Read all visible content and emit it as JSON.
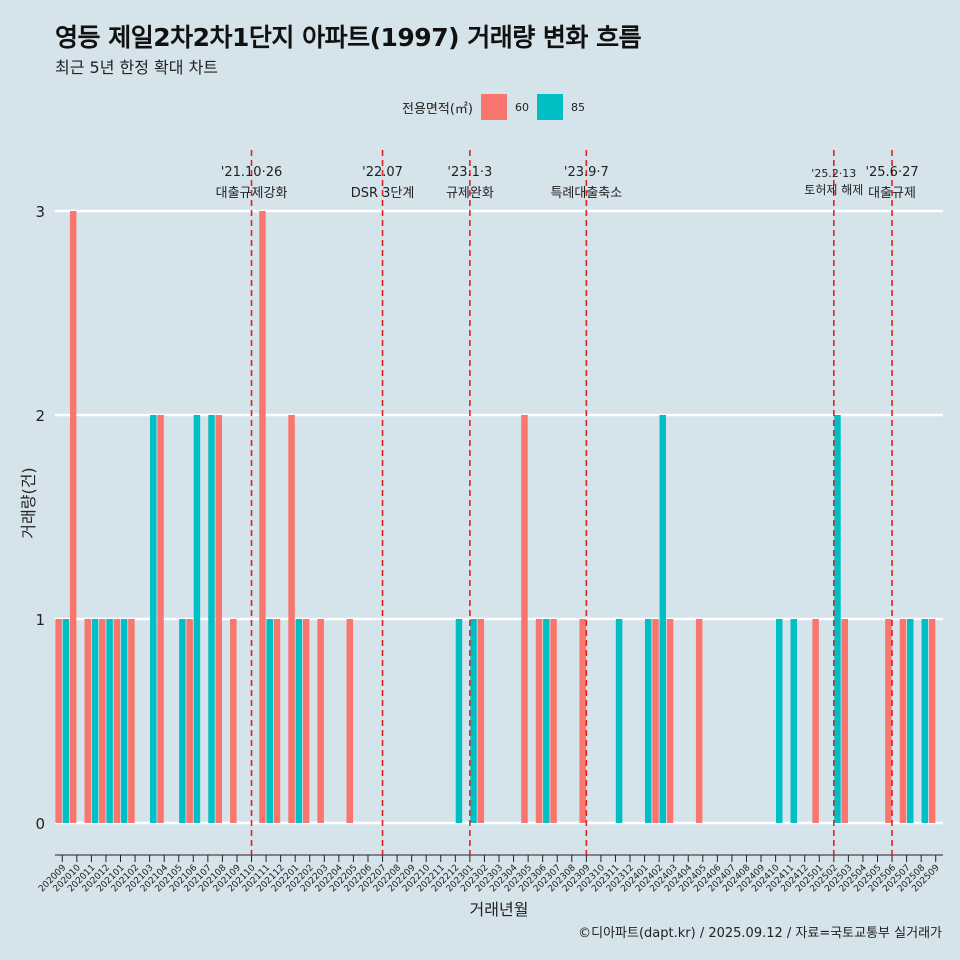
{
  "title": "영등 제일2차2차1단지 아파트(1997) 거래량 변화 흐름",
  "subtitle": "최근 5년 한정 확대 차트",
  "caption": "©디아파트(dapt.kr) / 2025.09.12 / 자료=국토교통부 실거래가",
  "legend": {
    "title": "전용면적(㎡)",
    "items": [
      {
        "label": "60",
        "color": "#f8766d"
      },
      {
        "label": "85",
        "color": "#00bfc4"
      }
    ]
  },
  "chart_data": {
    "type": "bar",
    "xlabel": "거래년월",
    "ylabel": "거래량(건)",
    "ylim": [
      0,
      3
    ],
    "yticks": [
      0,
      1,
      2,
      3
    ],
    "grid": true,
    "legend_position": "top",
    "categories": [
      "202009",
      "202010",
      "202011",
      "202012",
      "202101",
      "202102",
      "202103",
      "202104",
      "202105",
      "202106",
      "202107",
      "202108",
      "202109",
      "202110",
      "202111",
      "202112",
      "202201",
      "202202",
      "202203",
      "202204",
      "202205",
      "202206",
      "202207",
      "202208",
      "202209",
      "202210",
      "202211",
      "202212",
      "202301",
      "202302",
      "202303",
      "202304",
      "202305",
      "202306",
      "202307",
      "202308",
      "202309",
      "202310",
      "202311",
      "202312",
      "202401",
      "202402",
      "202403",
      "202404",
      "202405",
      "202406",
      "202407",
      "202408",
      "202409",
      "202410",
      "202411",
      "202412",
      "202501",
      "202502",
      "202503",
      "202504",
      "202505",
      "202506",
      "202507",
      "202508",
      "202509"
    ],
    "series": [
      {
        "name": "60",
        "color": "#f8766d",
        "values": [
          1,
          3,
          1,
          1,
          1,
          1,
          0,
          2,
          0,
          1,
          0,
          2,
          1,
          0,
          3,
          1,
          2,
          1,
          1,
          0,
          1,
          0,
          0,
          0,
          0,
          0,
          0,
          0,
          0,
          1,
          0,
          0,
          2,
          1,
          1,
          0,
          1,
          0,
          0,
          0,
          0,
          1,
          1,
          0,
          1,
          0,
          0,
          0,
          0,
          0,
          0,
          0,
          1,
          0,
          1,
          0,
          0,
          1,
          1,
          0,
          1
        ]
      },
      {
        "name": "85",
        "color": "#00bfc4",
        "values": [
          1,
          0,
          1,
          1,
          1,
          0,
          2,
          0,
          1,
          2,
          2,
          0,
          0,
          0,
          1,
          0,
          1,
          0,
          0,
          0,
          0,
          0,
          0,
          0,
          0,
          0,
          0,
          1,
          1,
          0,
          0,
          0,
          0,
          1,
          0,
          0,
          0,
          0,
          1,
          0,
          1,
          2,
          0,
          0,
          0,
          0,
          0,
          0,
          0,
          1,
          1,
          0,
          0,
          2,
          0,
          0,
          0,
          0,
          1,
          1,
          0
        ]
      }
    ],
    "annotations": [
      {
        "date": "'21.10·26",
        "label": "대출규제강화",
        "x": "202110"
      },
      {
        "date": "'22.07",
        "label": "DSR 3단계",
        "x": "202207"
      },
      {
        "date": "'23.1·3",
        "label": "규제완화",
        "x": "202301"
      },
      {
        "date": "'23.9·7",
        "label": "특례대출축소",
        "x": "202309"
      },
      {
        "date": "'25.2·13",
        "label": "토허제 해제",
        "x": "202502"
      },
      {
        "date": "'25.6·27",
        "label": "대출규제",
        "x": "202506"
      }
    ]
  }
}
